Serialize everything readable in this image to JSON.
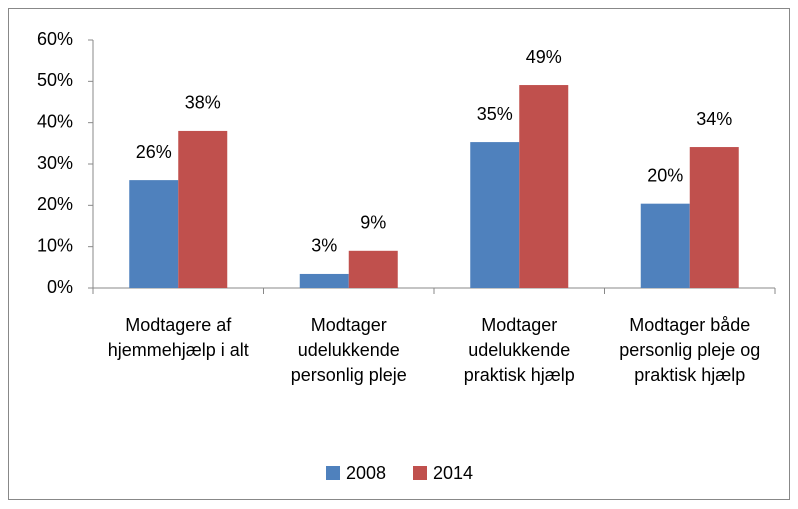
{
  "chart_data": {
    "type": "bar",
    "categories": [
      "Modtagere af hjemmehjælp i alt",
      "Modtager udelukkende personlig pleje",
      "Modtager udelukkende praktisk hjælp",
      "Modtager både personlig pleje og praktisk hjælp"
    ],
    "series": [
      {
        "name": "2008",
        "color": "#4f81bd",
        "values": [
          26.1,
          3.4,
          35.3,
          20.4
        ],
        "value_labels": [
          "26%",
          "3%",
          "35%",
          "20%"
        ]
      },
      {
        "name": "2014",
        "color": "#c0504d",
        "values": [
          38.0,
          9.0,
          49.1,
          34.1
        ],
        "value_labels": [
          "38%",
          "9%",
          "49%",
          "34%"
        ]
      }
    ],
    "ylim": [
      0,
      60
    ],
    "yticks": [
      {
        "value": 0,
        "label": "0%"
      },
      {
        "value": 10,
        "label": "10%"
      },
      {
        "value": 20,
        "label": "20%"
      },
      {
        "value": 30,
        "label": "30%"
      },
      {
        "value": 40,
        "label": "40%"
      },
      {
        "value": 50,
        "label": "50%"
      },
      {
        "value": 60,
        "label": "60%"
      }
    ],
    "legend": "bottom",
    "grid": false
  }
}
